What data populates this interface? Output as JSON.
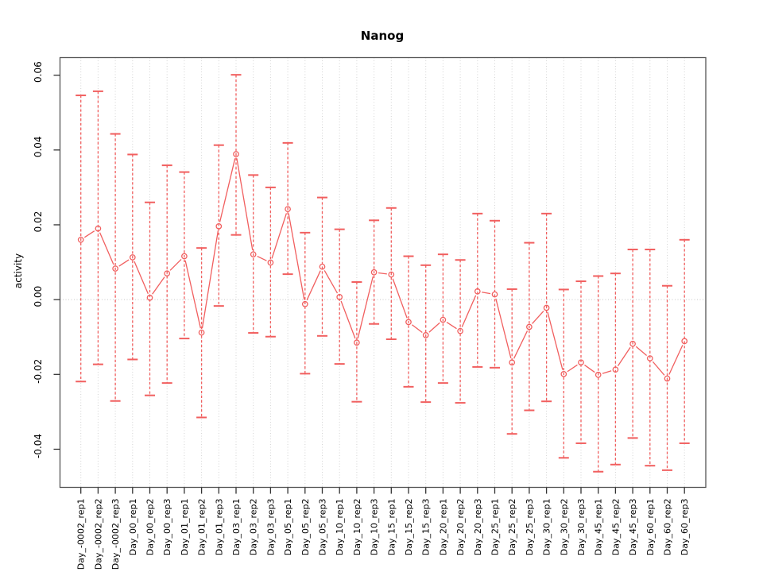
{
  "chart": {
    "title": "Nanog",
    "ylabel": "activity",
    "xlabel": ""
  },
  "chart_data": {
    "type": "line",
    "title": "Nanog",
    "xlabel": "",
    "ylabel": "activity",
    "legend": "none",
    "grid": "vertical dotted gridline at every category; dotted horizontal line at y=0",
    "point_style": "open-circle with dashed error bars and solid caps, gapped connecting segments",
    "ylim": [
      -0.0502,
      0.0647
    ],
    "yticks": {
      "values": [
        0.06,
        0.04,
        0.02,
        0.0,
        -0.02,
        -0.04
      ],
      "labels": [
        "0.06",
        "0.04",
        "0.02",
        "0.00",
        "-0.02",
        "-0.04"
      ]
    },
    "categories": [
      "Day_-0002_rep1",
      "Day_-0002_rep2",
      "Day_-0002_rep3",
      "Day_00_rep1",
      "Day_00_rep2",
      "Day_00_rep3",
      "Day_01_rep1",
      "Day_01_rep2",
      "Day_01_rep3",
      "Day_03_rep1",
      "Day_03_rep2",
      "Day_03_rep3",
      "Day_05_rep1",
      "Day_05_rep2",
      "Day_05_rep3",
      "Day_10_rep1",
      "Day_10_rep2",
      "Day_10_rep3",
      "Day_15_rep1",
      "Day_15_rep2",
      "Day_15_rep3",
      "Day_20_rep1",
      "Day_20_rep2",
      "Day_20_rep3",
      "Day_25_rep1",
      "Day_25_rep2",
      "Day_25_rep3",
      "Day_30_rep1",
      "Day_30_rep2",
      "Day_30_rep3",
      "Day_45_rep1",
      "Day_45_rep2",
      "Day_45_rep3",
      "Day_60_rep1",
      "Day_60_rep2",
      "Day_60_rep3"
    ],
    "series": [
      {
        "name": "activity",
        "center": [
          0.016,
          0.019,
          0.0083,
          0.0113,
          0.0005,
          0.007,
          0.0116,
          -0.0088,
          0.0196,
          0.0389,
          0.0121,
          0.0099,
          0.0242,
          -0.0012,
          0.0088,
          0.0007,
          -0.0115,
          0.0073,
          0.0067,
          -0.006,
          -0.0095,
          -0.0054,
          -0.0084,
          0.0022,
          0.0014,
          -0.0168,
          -0.0073,
          -0.0022,
          -0.0199,
          -0.0168,
          -0.0201,
          -0.0187,
          -0.0118,
          -0.0157,
          -0.0211,
          -0.0111
        ],
        "upper": [
          0.0546,
          0.0557,
          0.0443,
          0.0388,
          0.026,
          0.0359,
          0.0341,
          0.0138,
          0.0413,
          0.0601,
          0.0333,
          0.03,
          0.0419,
          0.0179,
          0.0273,
          0.0188,
          0.0047,
          0.0212,
          0.0245,
          0.0116,
          0.0092,
          0.0121,
          0.0106,
          0.023,
          0.0211,
          0.0028,
          0.0152,
          0.023,
          0.0027,
          0.0049,
          0.0063,
          0.007,
          0.0134,
          0.0134,
          0.0037,
          0.016
        ],
        "lower": [
          -0.0219,
          -0.0173,
          -0.0271,
          -0.016,
          -0.0256,
          -0.0223,
          -0.0104,
          -0.0315,
          -0.0017,
          0.0173,
          -0.0089,
          -0.0099,
          0.0068,
          -0.0198,
          -0.0097,
          -0.0172,
          -0.0273,
          -0.0065,
          -0.0106,
          -0.0233,
          -0.0274,
          -0.0223,
          -0.0276,
          -0.018,
          -0.0182,
          -0.0359,
          -0.0296,
          -0.0272,
          -0.0423,
          -0.0384,
          -0.046,
          -0.0441,
          -0.037,
          -0.0444,
          -0.0456,
          -0.0384
        ]
      }
    ],
    "colors": {
      "series": "#f15f5f",
      "grid": "#d4d4d4",
      "zero_line": "#c8c8c8",
      "axis_box": "#555555",
      "tick": "#333333",
      "text": "#000000",
      "background": "#ffffff"
    }
  }
}
